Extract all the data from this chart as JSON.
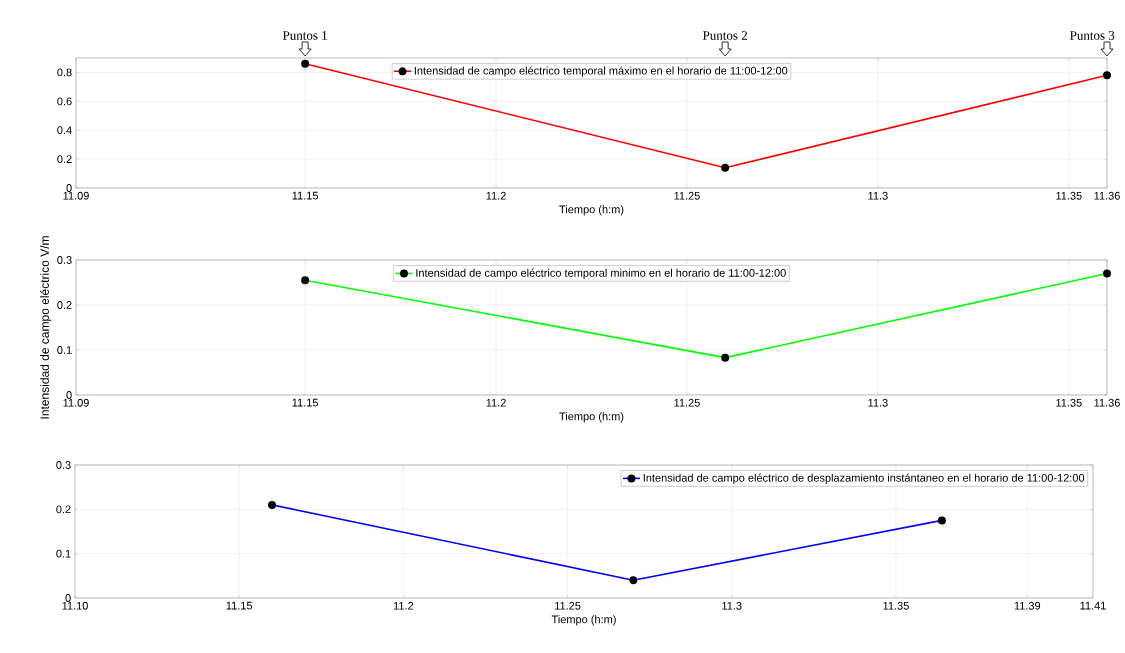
{
  "chart_data": [
    {
      "type": "line",
      "xlabel": "Tiempo (h:m)",
      "annotations": [
        "Puntos 1",
        "Puntos 2",
        "Puntos 3"
      ],
      "x": [
        11.15,
        11.26,
        11.36
      ],
      "series": [
        {
          "name": "Intensidad de campo eléctrico temporal máximo en el horario de 11:00-12:00",
          "color": "#ff0000",
          "values": [
            0.86,
            0.14,
            0.78
          ]
        }
      ],
      "xlim": [
        11.09,
        11.36
      ],
      "ylim": [
        0,
        0.9
      ],
      "xticks": [
        11.09,
        11.15,
        11.2,
        11.25,
        11.3,
        11.35,
        11.36
      ],
      "yticks": [
        0,
        0.2,
        0.4,
        0.6,
        0.8
      ],
      "grid": true,
      "legend": "top",
      "marker": "circle",
      "line_style": "solid"
    },
    {
      "type": "line",
      "xlabel": "Tiempo (h:m)",
      "ylabel": "Intensidad de campo eléctrico V/m",
      "x": [
        11.15,
        11.26,
        11.36
      ],
      "series": [
        {
          "name": "Intensidad de campo eléctrico temporal minimo en el horario de 11:00-12:00",
          "color": "#00ff00",
          "values": [
            0.255,
            0.083,
            0.27
          ]
        }
      ],
      "xlim": [
        11.09,
        11.36
      ],
      "ylim": [
        0,
        0.3
      ],
      "xticks": [
        11.09,
        11.15,
        11.2,
        11.25,
        11.3,
        11.35,
        11.36
      ],
      "yticks": [
        0,
        0.1,
        0.2,
        0.3
      ],
      "grid": true,
      "legend": "top",
      "marker": "circle",
      "line_style": "solid"
    },
    {
      "type": "line",
      "xlabel": "Tiempo (h:m)",
      "x": [
        11.16,
        11.27,
        11.364
      ],
      "series": [
        {
          "name": "Intensidad de campo eléctrico de desplazamiento instántaneo en el horario de 11:00-12:00",
          "color": "#0000ff",
          "values": [
            0.21,
            0.04,
            0.175
          ]
        }
      ],
      "xlim": [
        11.1,
        11.41
      ],
      "ylim": [
        0,
        0.3
      ],
      "xticks": [
        {
          "value": 11.1,
          "label": "11.10"
        },
        11.15,
        11.2,
        11.25,
        11.3,
        11.35,
        11.39,
        11.41
      ],
      "yticks": [
        0,
        0.1,
        0.2,
        0.3
      ],
      "grid": true,
      "legend": "top right",
      "marker": "circle",
      "line_style": "solid"
    }
  ]
}
